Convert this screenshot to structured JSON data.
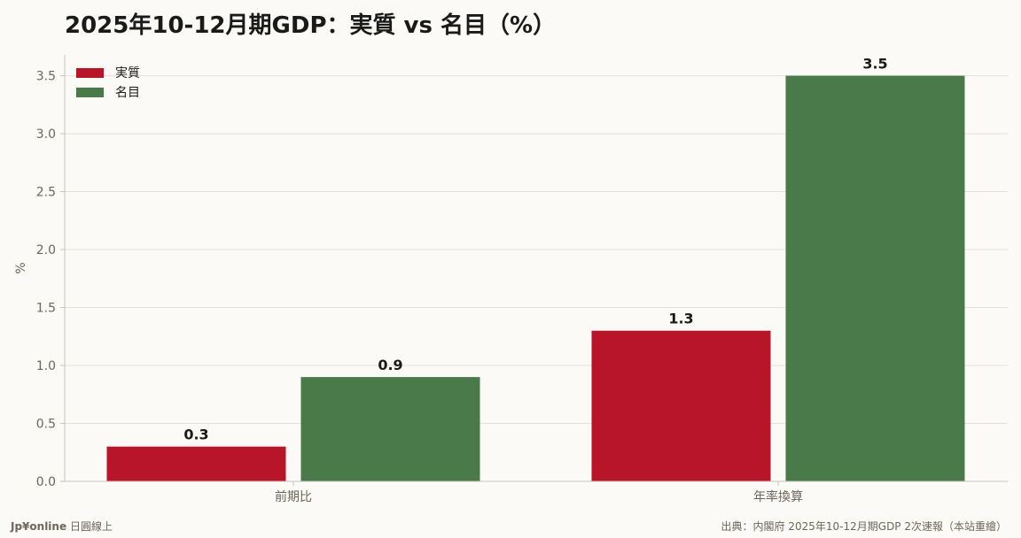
{
  "chart_data": {
    "type": "bar",
    "title": "2025年10-12月期GDP：実質 vs 名目（%）",
    "xlabel": "",
    "ylabel": "%",
    "categories": [
      "前期比",
      "年率換算"
    ],
    "series": [
      {
        "name": "実質",
        "values": [
          0.3,
          1.3
        ]
      },
      {
        "name": "名目",
        "values": [
          0.9,
          3.5
        ]
      }
    ],
    "ylim": [
      0,
      3.68
    ],
    "yticks": [
      "0.0",
      "0.5",
      "1.0",
      "1.5",
      "2.0",
      "2.5",
      "3.0",
      "3.5"
    ],
    "data_labels": [
      [
        "0.3",
        "1.3"
      ],
      [
        "0.9",
        "3.5"
      ]
    ],
    "grid": true,
    "legend": "top-left",
    "colors": {
      "実質": "#b8152b",
      "名目": "#4a7a4a"
    }
  },
  "footer": {
    "brand": "Jp¥online",
    "brand_suffix": "日圓線上",
    "source": "出典：内閣府 2025年10-12月期GDP 2次速報（本站重繪）"
  }
}
